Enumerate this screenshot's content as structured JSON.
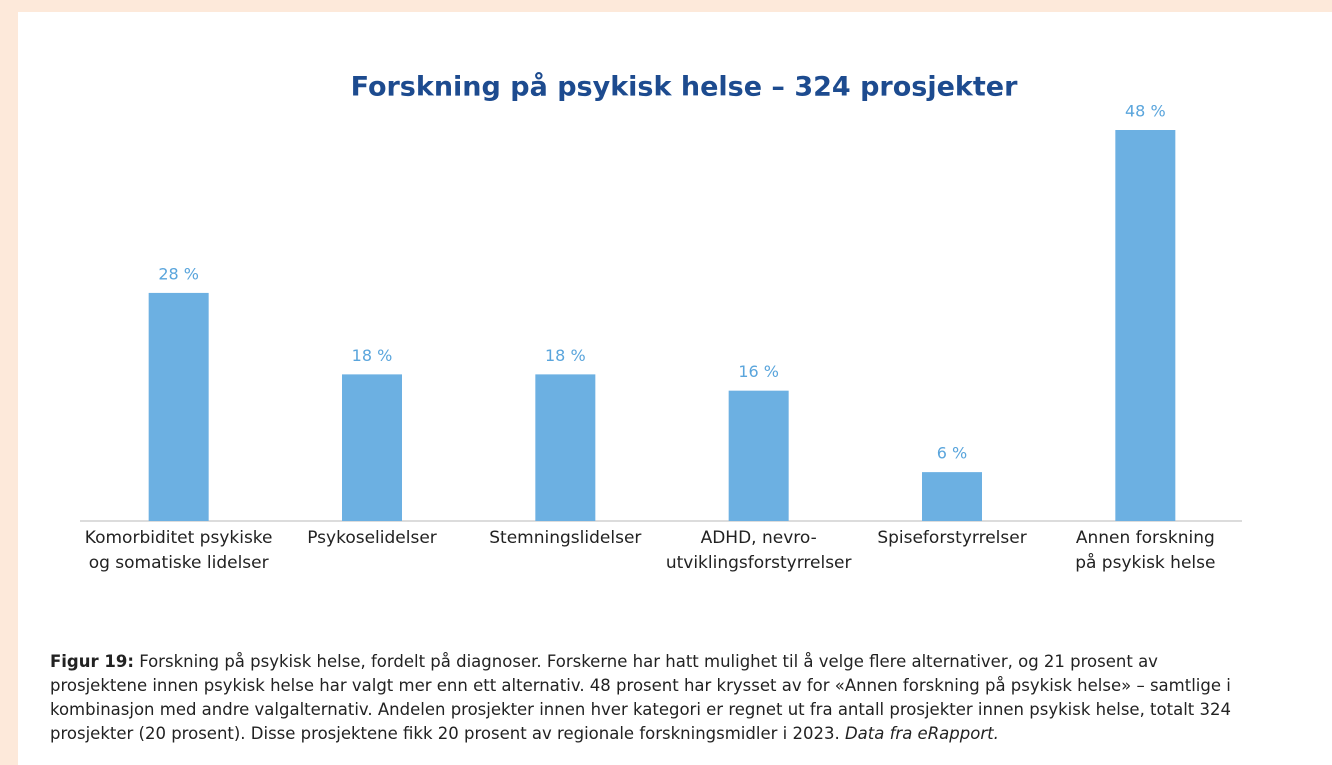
{
  "chart_data": {
    "type": "bar",
    "title": "Forskning på psykisk helse – 324 prosjekter",
    "categories": [
      [
        "Komorbiditet psykiske",
        "og somatiske lidelser"
      ],
      [
        "Psykoselidelser"
      ],
      [
        "Stemningslidelser"
      ],
      [
        "ADHD, nevro-",
        "utviklingsforstyrrelser"
      ],
      [
        "Spiseforstyrrelser"
      ],
      [
        "Annen forskning",
        "på psykisk helse"
      ]
    ],
    "values": [
      28,
      18,
      18,
      16,
      6,
      48
    ],
    "value_labels": [
      "28 %",
      "18 %",
      "18 %",
      "16 %",
      "6 %",
      "48 %"
    ],
    "color": "#6cb0e2"
  },
  "caption": {
    "label": "Figur 19:",
    "text": "Forskning på psykisk helse, fordelt på diagnoser. Forskerne har hatt mulighet til å velge flere alternativer, og 21 prosent av prosjektene innen psykisk helse har valgt mer enn ett alternativ. 48 prosent har krysset av for «Annen forskning på psykisk helse» – samtlige i kombinasjon med andre valgalternativ. Andelen prosjekter innen hver kategori er regnet ut fra antall prosjekter innen psykisk helse, totalt 324 prosjekter (20 prosent). Disse prosjektene fikk 20 prosent av regionale forskningsmidler i 2023.",
    "source": "Data fra eRapport."
  }
}
